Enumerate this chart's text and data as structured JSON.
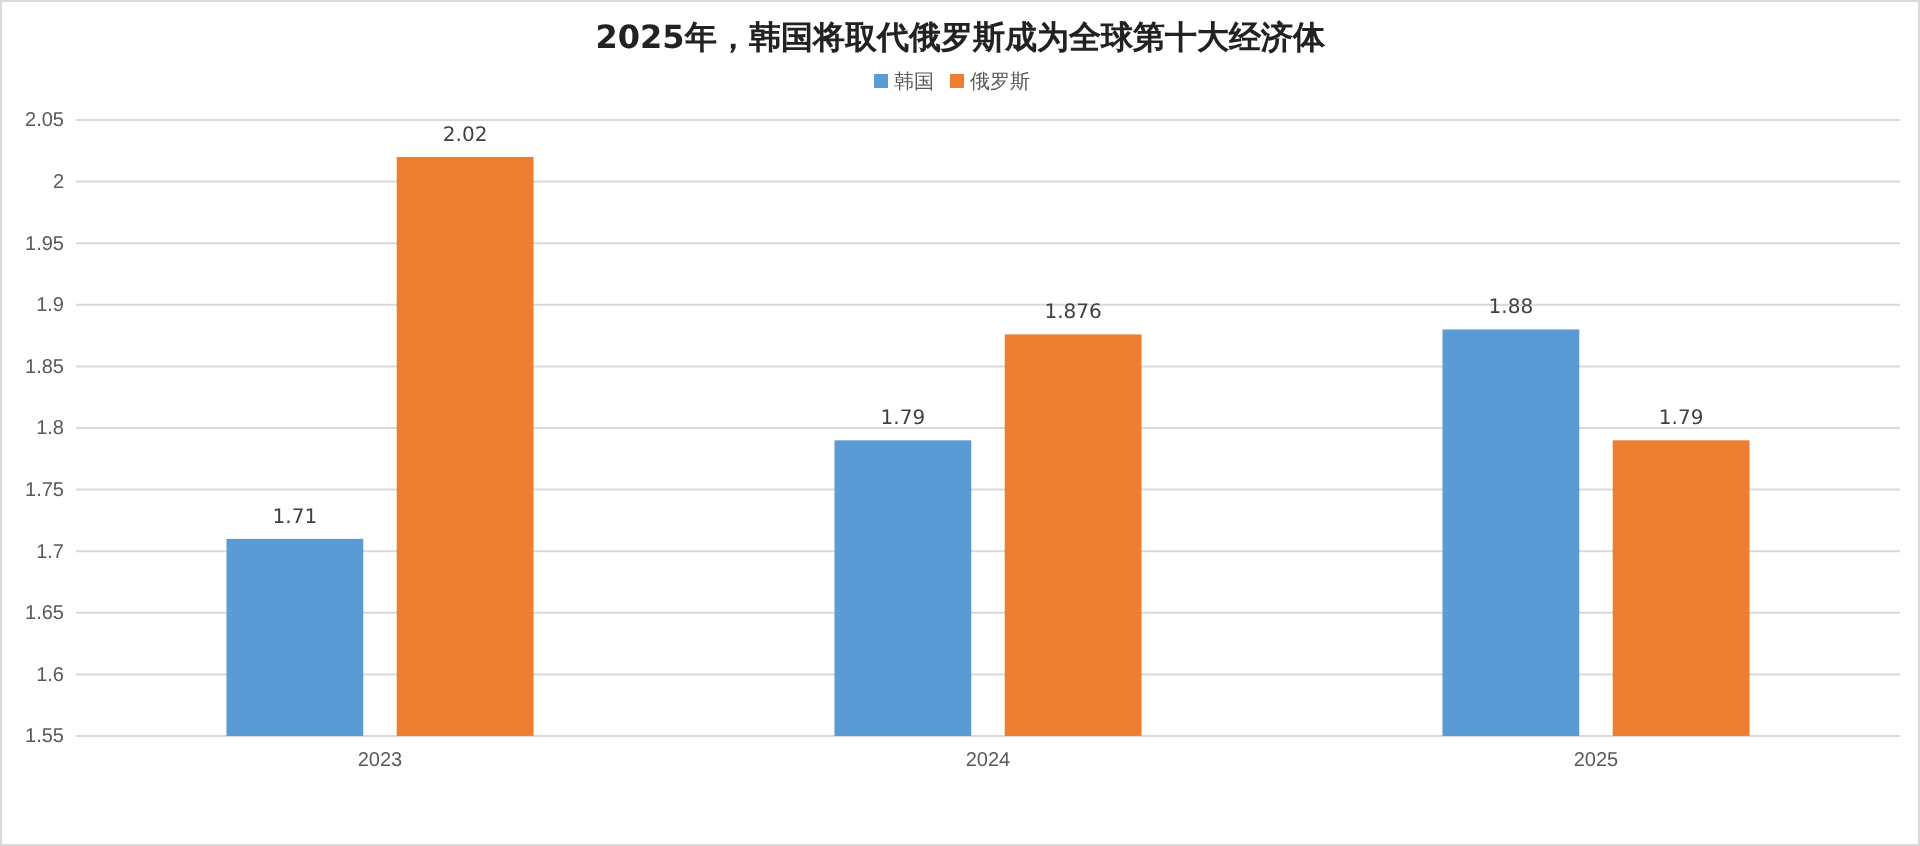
{
  "chart_data": {
    "type": "bar",
    "title": "2025年，韩国将取代俄罗斯成为全球第十大经济体",
    "categories": [
      "2023",
      "2024",
      "2025"
    ],
    "series": [
      {
        "name": "韩国",
        "color": "#5b9bd5",
        "values": [
          1.71,
          1.79,
          1.88
        ]
      },
      {
        "name": "俄罗斯",
        "color": "#ed7d31",
        "values": [
          2.02,
          1.876,
          1.79
        ]
      }
    ],
    "ylim": [
      1.55,
      2.05
    ],
    "yticks": [
      1.55,
      1.6,
      1.65,
      1.7,
      1.75,
      1.8,
      1.85,
      1.9,
      1.95,
      2,
      2.05
    ],
    "grid": "y",
    "legend": "top",
    "data_labels": true
  }
}
